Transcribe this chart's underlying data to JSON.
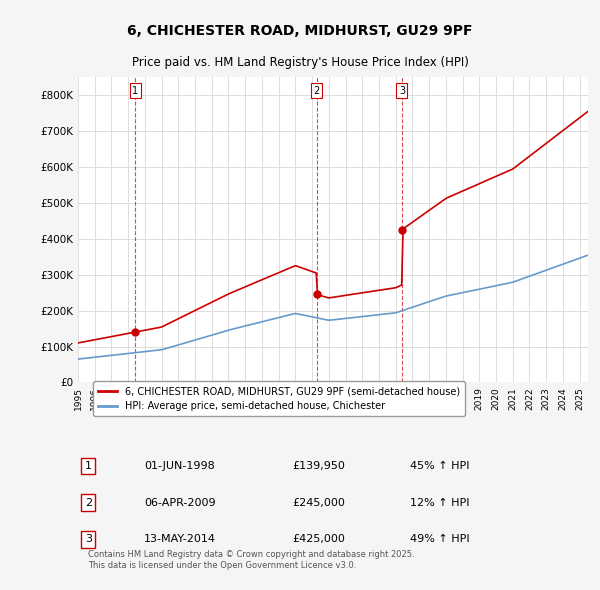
{
  "title": "6, CHICHESTER ROAD, MIDHURST, GU29 9PF",
  "subtitle": "Price paid vs. HM Land Registry's House Price Index (HPI)",
  "legend_line1": "6, CHICHESTER ROAD, MIDHURST, GU29 9PF (semi-detached house)",
  "legend_line2": "HPI: Average price, semi-detached house, Chichester",
  "sale_color": "#cc0000",
  "hpi_color": "#6699cc",
  "transactions": [
    {
      "num": 1,
      "date_label": "01-JUN-1998",
      "price": 139950,
      "pct": "45% ↑ HPI",
      "x": 1998.42
    },
    {
      "num": 2,
      "date_label": "06-APR-2009",
      "price": 245000,
      "pct": "12% ↑ HPI",
      "x": 2009.27
    },
    {
      "num": 3,
      "date_label": "13-MAY-2014",
      "price": 425000,
      "pct": "49% ↑ HPI",
      "x": 2014.37
    }
  ],
  "footer": "Contains HM Land Registry data © Crown copyright and database right 2025.\nThis data is licensed under the Open Government Licence v3.0.",
  "xmin": 1995,
  "xmax": 2025.5,
  "ymin": 0,
  "ymax": 850000,
  "yticks": [
    0,
    100000,
    200000,
    300000,
    400000,
    500000,
    600000,
    700000,
    800000
  ],
  "ytick_labels": [
    "£0",
    "£100K",
    "£200K",
    "£300K",
    "£400K",
    "£500K",
    "£600K",
    "£700K",
    "£800K"
  ],
  "background_color": "#f5f5f5",
  "plot_bg": "#ffffff",
  "grid_color": "#dddddd",
  "dashed_line_color": "#cc0000"
}
